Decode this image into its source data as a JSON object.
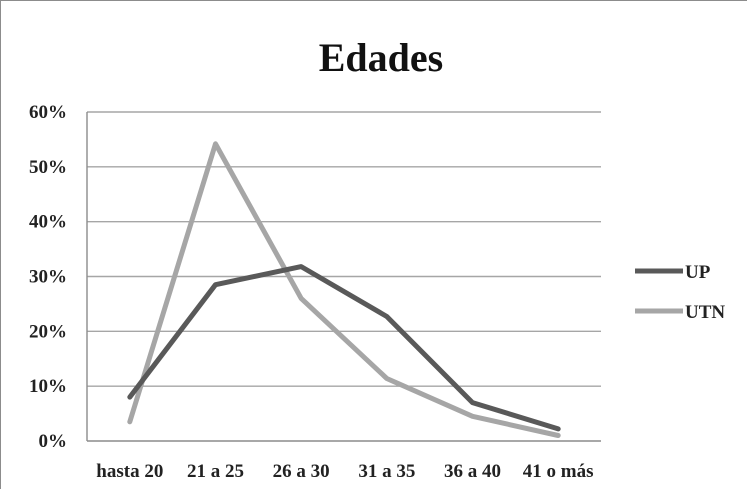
{
  "chart_data": {
    "type": "line",
    "title": "Edades",
    "xlabel": "",
    "ylabel": "",
    "categories": [
      "hasta 20",
      "21 a 25",
      "26 a 30",
      "31 a 35",
      "36 a 40",
      "41 o más"
    ],
    "ylim": [
      0,
      0.6
    ],
    "yticks": [
      "0%",
      "10%",
      "20%",
      "30%",
      "40%",
      "50%",
      "60%"
    ],
    "grid": "horizontal",
    "legend_position": "right",
    "series": [
      {
        "name": "UP",
        "color": "#595959",
        "values": [
          0.08,
          0.285,
          0.318,
          0.227,
          0.07,
          0.022
        ]
      },
      {
        "name": "UTN",
        "color": "#a6a6a6",
        "values": [
          0.035,
          0.542,
          0.26,
          0.114,
          0.045,
          0.01
        ]
      }
    ]
  }
}
